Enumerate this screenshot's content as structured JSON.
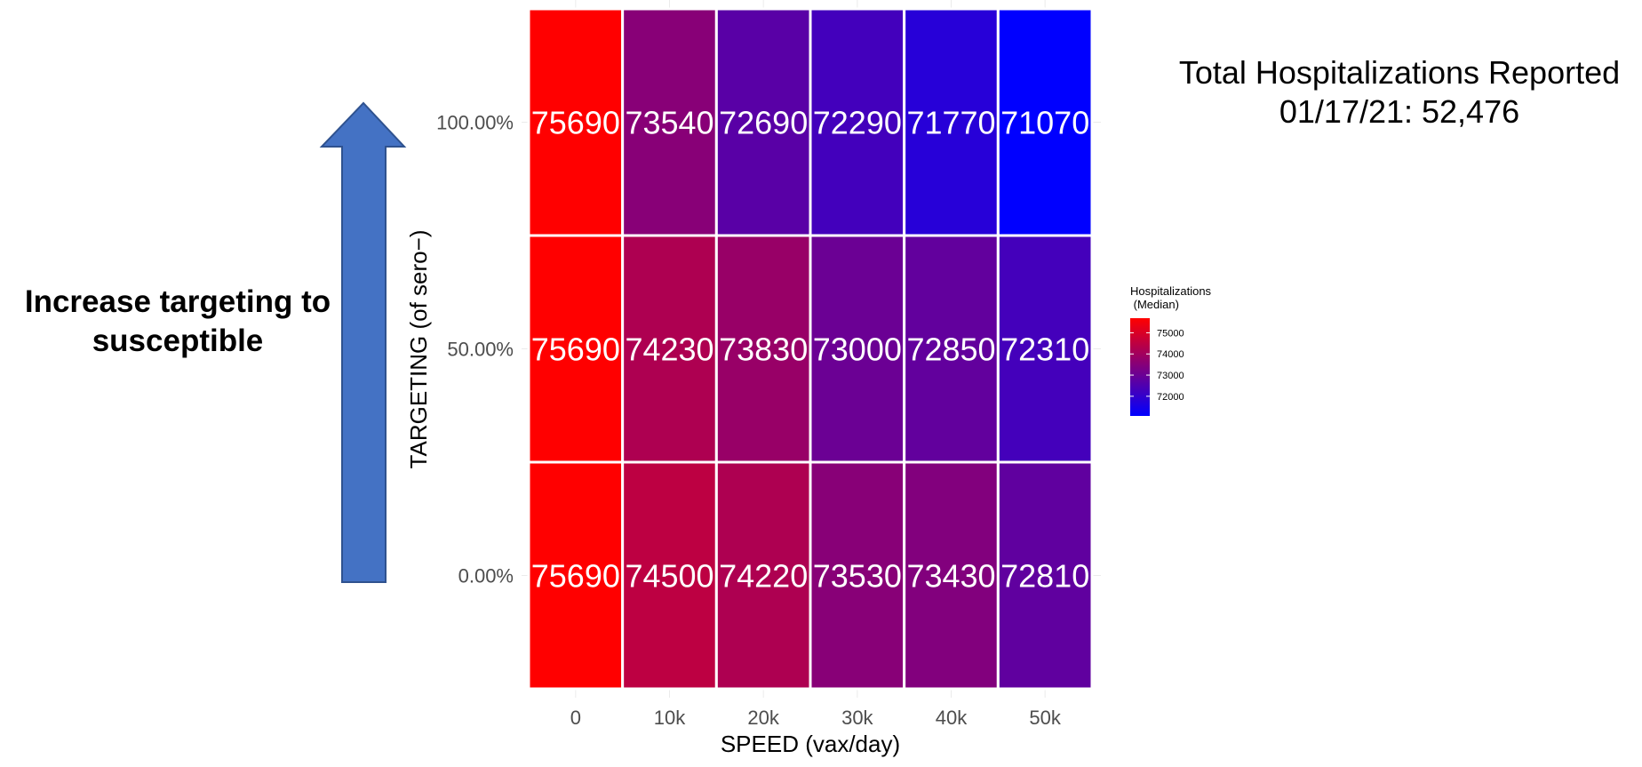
{
  "annotations": {
    "arrow_caption": "Increase targeting to\nsusceptible",
    "total_note": "Total Hospitalizations Reported\n01/17/21: 52,476"
  },
  "colors": {
    "arrow_fill": "#4472C4",
    "arrow_stroke": "#2F528F",
    "low": "#0000FF",
    "high": "#FF0000"
  },
  "chart_data": {
    "type": "heatmap",
    "xlabel": "SPEED (vax/day)",
    "ylabel": "TARGETING (of sero−)",
    "x_categories": [
      "0",
      "10k",
      "20k",
      "30k",
      "40k",
      "50k"
    ],
    "y_categories": [
      "0.00%",
      "50.00%",
      "100.00%"
    ],
    "values": [
      [
        75690,
        74500,
        74220,
        73530,
        73430,
        72810
      ],
      [
        75690,
        74230,
        73830,
        73000,
        72850,
        72310
      ],
      [
        75690,
        73540,
        72690,
        72290,
        71770,
        71070
      ]
    ],
    "legend": {
      "title_line1": "Hospitalizations",
      "title_line2": " (Median)",
      "ticks": [
        75000,
        74000,
        73000,
        72000
      ],
      "tick_labels": [
        "75000",
        "74000",
        "73000",
        "72000"
      ],
      "placement": "right"
    },
    "color_range": [
      71070,
      75690
    ]
  }
}
